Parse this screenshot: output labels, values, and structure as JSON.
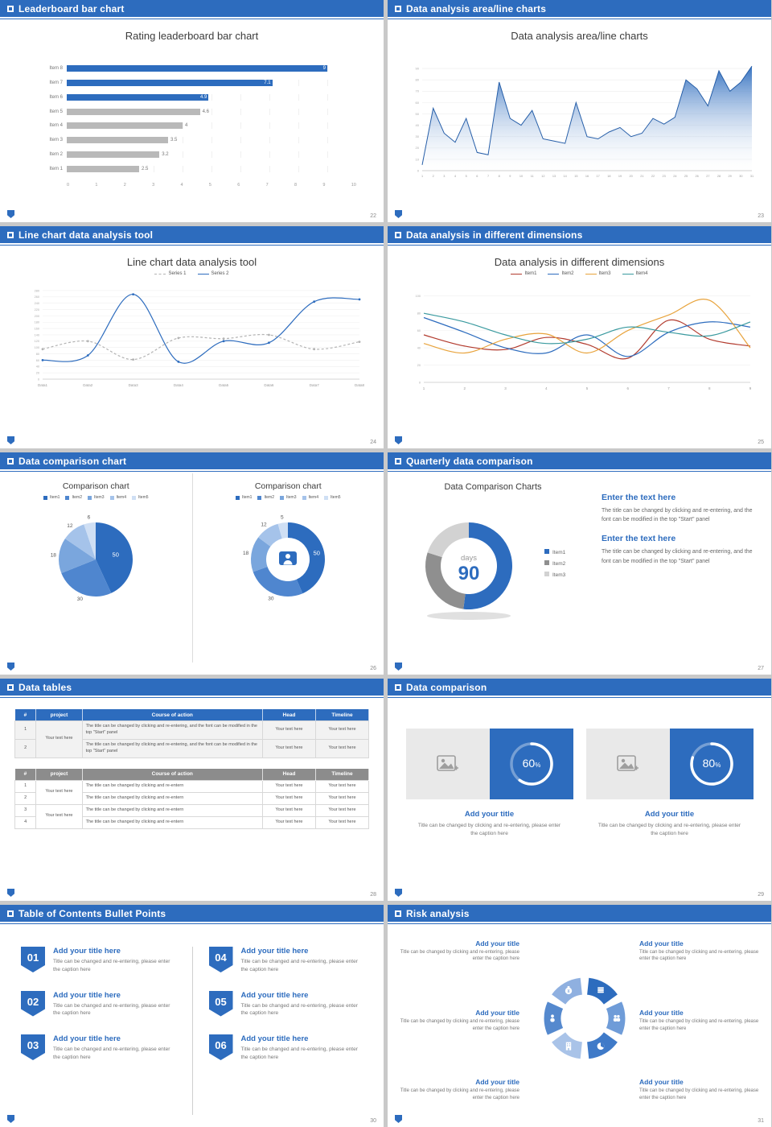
{
  "accent": "#2d6cbe",
  "slides": [
    {
      "name": "leaderboard-bar-chart",
      "header": "Leaderboard bar chart",
      "page": "22",
      "chart_title": "Rating leaderboard bar chart",
      "chart": {
        "type": "barh",
        "xlim": [
          0,
          10
        ],
        "x_ticks": [
          "0",
          "1",
          "2",
          "3",
          "4",
          "5",
          "6",
          "7",
          "8",
          "9",
          "10"
        ],
        "categories": [
          "Item 8",
          "Item 7",
          "Item 6",
          "Item 5",
          "Item 4",
          "Item 3",
          "Item 2",
          "Item 1"
        ],
        "values": [
          9,
          7.1,
          4.9,
          4.6,
          4,
          3.5,
          3.2,
          2.5
        ],
        "colors": [
          "#2d6cbe",
          "#2d6cbe",
          "#2d6cbe",
          "#b9b9b9",
          "#b9b9b9",
          "#b9b9b9",
          "#b9b9b9",
          "#b9b9b9"
        ]
      }
    },
    {
      "name": "area-line-charts",
      "header": "Data analysis area/line charts",
      "page": "23",
      "chart_title": "Data analysis area/line charts",
      "chart": {
        "type": "area",
        "ylim": [
          0,
          95
        ],
        "y_ticks": [
          0,
          10,
          20,
          30,
          40,
          50,
          60,
          70,
          80,
          90
        ],
        "x_ticks": [
          "1",
          "2",
          "3",
          "4",
          "5",
          "6",
          "7",
          "8",
          "9",
          "10",
          "11",
          "12",
          "13",
          "14",
          "15",
          "16",
          "17",
          "18",
          "19",
          "20",
          "21",
          "22",
          "23",
          "24",
          "25",
          "26",
          "27",
          "28",
          "29",
          "30",
          "31"
        ],
        "values": [
          5,
          55,
          33,
          25,
          46,
          16,
          14,
          78,
          46,
          40,
          53,
          28,
          26,
          24,
          60,
          30,
          28,
          34,
          38,
          30,
          33,
          46,
          41,
          47,
          80,
          72,
          57,
          88,
          70,
          78,
          92
        ],
        "color": "#2d6cbe"
      }
    },
    {
      "name": "line-chart-tool",
      "header": "Line chart data analysis tool",
      "page": "24",
      "chart_title": "Line chart data analysis tool",
      "chart": {
        "type": "lines",
        "ylim": [
          0,
          290
        ],
        "y_ticks": [
          0,
          20,
          40,
          60,
          80,
          100,
          120,
          140,
          160,
          180,
          200,
          220,
          240,
          260,
          280
        ],
        "categories": [
          "Data1",
          "Data2",
          "Data3",
          "Data4",
          "Data5",
          "Data6",
          "Data7",
          "Data8"
        ],
        "series": [
          {
            "name": "Series 1",
            "color": "#b3b3b3",
            "dash": true,
            "values": [
              95,
              120,
              62,
              130,
              128,
              140,
              95,
              118
            ]
          },
          {
            "name": "Series 2",
            "color": "#2d6cbe",
            "dash": false,
            "values": [
              60,
              75,
              268,
              55,
              120,
              115,
              245,
              252
            ]
          }
        ]
      }
    },
    {
      "name": "multi-dimension-lines",
      "header": "Data analysis in different dimensions",
      "page": "25",
      "chart_title": "Data analysis in different dimensions",
      "chart": {
        "type": "lines",
        "ylim": [
          0,
          110
        ],
        "y_ticks": [
          0,
          20,
          40,
          60,
          80,
          100
        ],
        "categories": [
          "1",
          "2",
          "3",
          "4",
          "5",
          "6",
          "7",
          "8",
          "9"
        ],
        "series": [
          {
            "name": "Item1",
            "color": "#b23b2e",
            "dash": false,
            "values": [
              55,
              42,
              38,
              52,
              44,
              28,
              72,
              50,
              42
            ]
          },
          {
            "name": "Item2",
            "color": "#2d6cbe",
            "dash": false,
            "values": [
              75,
              58,
              40,
              34,
              55,
              30,
              58,
              70,
              64
            ]
          },
          {
            "name": "Item3",
            "color": "#e8a33c",
            "dash": false,
            "values": [
              45,
              34,
              50,
              56,
              34,
              60,
              78,
              95,
              40
            ]
          },
          {
            "name": "Item4",
            "color": "#3a9a9f",
            "dash": false,
            "values": [
              80,
              70,
              55,
              45,
              50,
              64,
              58,
              54,
              70
            ]
          }
        ]
      }
    },
    {
      "name": "data-comparison-pies",
      "header": "Data comparison chart",
      "page": "26",
      "left": {
        "type": "pie",
        "title": "Comparison chart",
        "labels": [
          "Item1",
          "Item2",
          "Item3",
          "Item4",
          "Item5"
        ],
        "values": [
          50,
          30,
          18,
          12,
          6
        ],
        "colors": [
          "#2d6cbe",
          "#4f86cf",
          "#7aa6dd",
          "#a5c3ea",
          "#cfdff4"
        ]
      },
      "right": {
        "type": "donut",
        "title": "Comparison chart",
        "labels": [
          "Item1",
          "Item2",
          "Item3",
          "Item4",
          "Item5"
        ],
        "values": [
          50,
          30,
          18,
          12,
          5
        ],
        "colors": [
          "#2d6cbe",
          "#4f86cf",
          "#7aa6dd",
          "#a5c3ea",
          "#cfdff4"
        ]
      }
    },
    {
      "name": "quarterly-data-comparison",
      "header": "Quarterly data comparison",
      "page": "27",
      "chart_title": "Data Comparison Charts",
      "donut": {
        "type": "donut",
        "values": [
          52,
          28,
          20
        ],
        "colors": [
          "#2d6cbe",
          "#8f8f8f",
          "#d2d2d2"
        ],
        "labels": [
          "Item1",
          "Item2",
          "Item3"
        ],
        "center_label": "days",
        "center_value": "90"
      },
      "blocks": [
        {
          "title": "Enter the text here",
          "body": "The title can be changed by clicking and re-entering, and the font can be modified in the top \"Start\" panel"
        },
        {
          "title": "Enter the text here",
          "body": "The title can be changed by clicking and re-entering, and the font can be modified in the top \"Start\" panel"
        }
      ]
    },
    {
      "name": "data-tables",
      "header": "Data tables",
      "page": "28",
      "tables": [
        {
          "header_bg": "#2d6cbe",
          "row_bg": "#f2f2f2",
          "columns": [
            "#",
            "project",
            "Course of action",
            "Head",
            "Timeline"
          ],
          "rows": [
            [
              {
                "t": "1"
              },
              {
                "t": "Your text here",
                "rs": 2
              },
              {
                "t": "The title can be changed by clicking and re-entering, and the font can be modified in the top \"Start\" panel"
              },
              {
                "t": "Your text here"
              },
              {
                "t": "Your text here"
              }
            ],
            [
              {
                "t": "2"
              },
              null,
              {
                "t": "The title can be changed by clicking and re-entering, and the font can be modified in the top \"Start\" panel"
              },
              {
                "t": "Your text here"
              },
              {
                "t": "Your text here"
              }
            ]
          ]
        },
        {
          "header_bg": "#8c8c8c",
          "row_bg": "#ffffff",
          "columns": [
            "#",
            "project",
            "Course of action",
            "Head",
            "Timeline"
          ],
          "rows": [
            [
              {
                "t": "1"
              },
              {
                "t": "Your text here",
                "rs": 2
              },
              {
                "t": "The title can be changed by clicking and re-entern"
              },
              {
                "t": "Your text here"
              },
              {
                "t": "Your text here"
              }
            ],
            [
              {
                "t": "2"
              },
              null,
              {
                "t": "The title can be changed by clicking and re-entern"
              },
              {
                "t": "Your text here"
              },
              {
                "t": "Your text here"
              }
            ],
            [
              {
                "t": "3"
              },
              {
                "t": "Your text here",
                "rs": 2
              },
              {
                "t": "The title can be changed by clicking and re-entern"
              },
              {
                "t": "Your text here"
              },
              {
                "t": "Your text here"
              }
            ],
            [
              {
                "t": "4"
              },
              null,
              {
                "t": "The title can be changed by clicking and re-entern"
              },
              {
                "t": "Your text here"
              },
              {
                "t": "Your text here"
              }
            ]
          ]
        }
      ]
    },
    {
      "name": "data-comparison-cards",
      "header": "Data comparison",
      "page": "29",
      "cards": [
        {
          "percent": 60,
          "title": "Add your title",
          "caption": "Title can be changed by clicking and re-entering, please enter the caption here"
        },
        {
          "percent": 80,
          "title": "Add your title",
          "caption": "Title can be changed by clicking and re-entering, please enter the caption here"
        }
      ]
    },
    {
      "name": "table-of-contents",
      "header": "Table of Contents Bullet Points",
      "page": "30",
      "numbers": [
        "01",
        "02",
        "03",
        "04",
        "05",
        "06"
      ],
      "item_title": "Add your title here",
      "item_caption": "Title can be changed and re-entering, please enter the caption here"
    },
    {
      "name": "risk-analysis",
      "header": "Risk analysis",
      "page": "31",
      "block_title": "Add your title",
      "block_caption": "Title can be changed by clicking and re-entering, please enter the caption here",
      "wheel": {
        "colors": [
          "#2d6cbe",
          "#6f9cd8",
          "#3f7ac8",
          "#a9c3e8",
          "#5589ce",
          "#8fb0e0"
        ],
        "icons": [
          "coins-icon",
          "people-icon",
          "pie-chart-icon",
          "building-icon",
          "person-icon",
          "money-bag-icon"
        ]
      }
    }
  ]
}
